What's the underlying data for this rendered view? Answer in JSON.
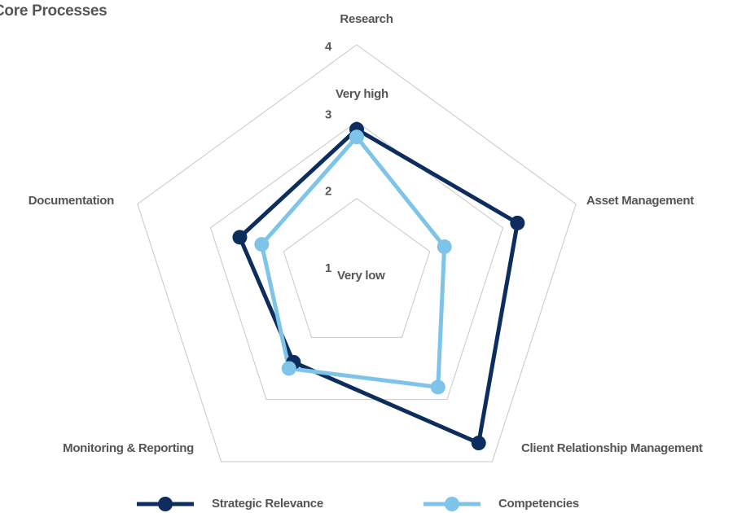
{
  "chart_data": {
    "type": "radar",
    "title": "Core Processes",
    "categories": [
      "Research",
      "Asset Management",
      "Client Relationship Management",
      "Monitoring & Reporting",
      "Documentation"
    ],
    "series": [
      {
        "name": "Strategic Relevance",
        "color": "#0d2d5e",
        "values": [
          2.9,
          3.2,
          3.7,
          2.4,
          2.6
        ]
      },
      {
        "name": "Competencies",
        "color": "#7dc4e8",
        "values": [
          2.8,
          2.2,
          2.8,
          2.5,
          2.3
        ]
      }
    ],
    "rlim": [
      1,
      4
    ],
    "rticks": [
      1,
      2,
      3,
      4
    ],
    "annotations": [
      "Very high",
      "Very low"
    ],
    "grid": true,
    "legend": "bottom"
  }
}
